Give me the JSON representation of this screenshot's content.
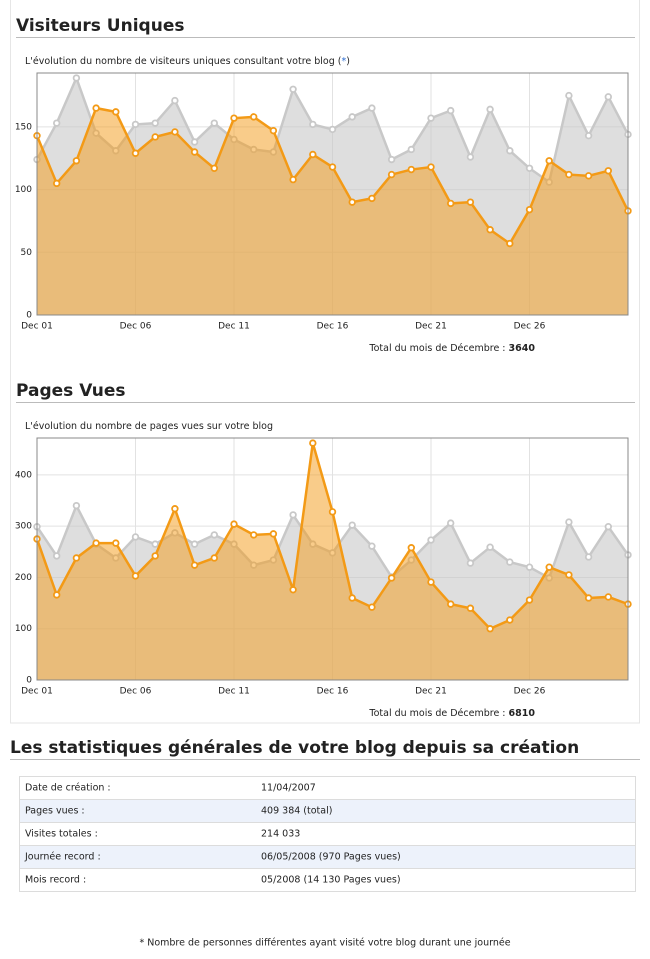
{
  "chart_data": [
    {
      "type": "area",
      "title": "Visiteurs Uniques",
      "subtitle": [
        "L'évolution du nombre de visiteurs uniques consultant votre blog (",
        "*",
        ")"
      ],
      "categories": [
        "Dec 01",
        null,
        null,
        null,
        null,
        "Dec 06",
        null,
        null,
        null,
        null,
        "Dec 11",
        null,
        null,
        null,
        null,
        "Dec 16",
        null,
        null,
        null,
        null,
        "Dec 21",
        null,
        null,
        null,
        null,
        "Dec 26",
        null,
        null,
        null,
        null,
        null
      ],
      "series": [
        {
          "color": "#c8c8c8",
          "values": [
            124,
            153,
            189,
            145,
            131,
            152,
            153,
            171,
            138,
            153,
            140,
            132,
            130,
            180,
            152,
            148,
            158,
            165,
            124,
            132,
            157,
            163,
            126,
            164,
            131,
            117,
            106,
            175,
            143,
            174,
            144
          ]
        },
        {
          "color": "#f39a16",
          "values": [
            143,
            105,
            123,
            165,
            162,
            129,
            142,
            146,
            130,
            117,
            157,
            158,
            147,
            108,
            128,
            118,
            90,
            93,
            112,
            116,
            118,
            89,
            90,
            68,
            57,
            84,
            123,
            112,
            111,
            115,
            83
          ]
        }
      ],
      "ylim": [
        0,
        193
      ],
      "yticks": [
        0,
        50,
        100,
        150
      ],
      "grid": true,
      "total_label": "Total du mois de Décembre : ",
      "total": 3640
    },
    {
      "type": "area",
      "title": "Pages Vues",
      "subtitle": [
        "L'évolution du nombre de pages vues sur votre blog"
      ],
      "categories": [
        "Dec 01",
        null,
        null,
        null,
        null,
        "Dec 06",
        null,
        null,
        null,
        null,
        "Dec 11",
        null,
        null,
        null,
        null,
        "Dec 16",
        null,
        null,
        null,
        null,
        "Dec 21",
        null,
        null,
        null,
        null,
        "Dec 26",
        null,
        null,
        null,
        null,
        null
      ],
      "series": [
        {
          "color": "#c8c8c8",
          "values": [
            299,
            242,
            340,
            265,
            238,
            279,
            265,
            287,
            265,
            283,
            265,
            224,
            234,
            322,
            265,
            248,
            302,
            261,
            201,
            234,
            273,
            306,
            228,
            259,
            230,
            220,
            199,
            308,
            240,
            299,
            244
          ]
        },
        {
          "color": "#f39a16",
          "values": [
            275,
            166,
            238,
            267,
            267,
            203,
            242,
            334,
            224,
            238,
            304,
            283,
            285,
            176,
            462,
            328,
            160,
            142,
            199,
            258,
            191,
            148,
            140,
            100,
            117,
            156,
            220,
            205,
            160,
            162,
            148
          ]
        }
      ],
      "ylim": [
        0,
        472
      ],
      "yticks": [
        0,
        100,
        200,
        300,
        400
      ],
      "grid": true,
      "total_label": "Total du mois de Décembre : ",
      "total": 6810
    }
  ],
  "stats": {
    "title": "Les statistiques générales de votre blog depuis sa création",
    "rows": [
      [
        "Date de création :",
        "11/04/2007"
      ],
      [
        "Pages vues :",
        "409 384 (total)"
      ],
      [
        "Visites totales :",
        "214 033"
      ],
      [
        "Journée record :",
        "06/05/2008 (970 Pages vues)"
      ],
      [
        "Mois record :",
        "05/2008 (14 130 Pages vues)"
      ]
    ]
  },
  "footnote": "* Nombre de personnes différentes ayant visité votre blog durant une journée"
}
